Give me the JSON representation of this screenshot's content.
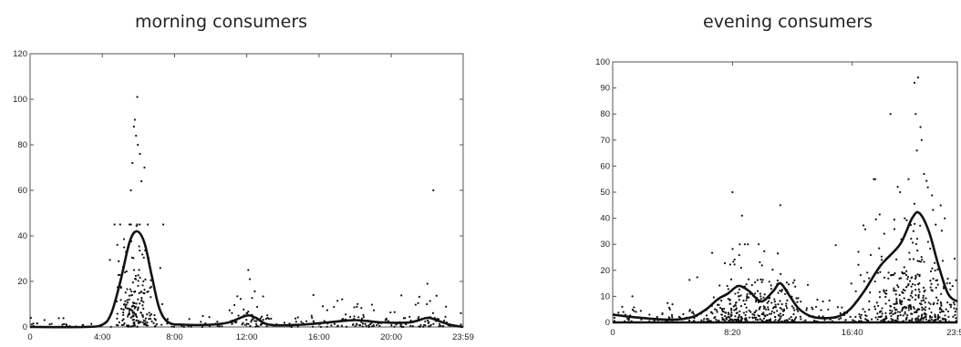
{
  "chart_data": [
    {
      "type": "scatter",
      "title": "morning consumers",
      "xlabel": "",
      "ylabel": "",
      "xlim": [
        "0:00",
        "23:59"
      ],
      "ylim": [
        0,
        120
      ],
      "x_ticks": [
        "0",
        "4:00",
        "8:00",
        "12:00",
        "16:00",
        "20:00",
        "23:59"
      ],
      "y_ticks": [
        "0",
        "20",
        "40",
        "60",
        "80",
        "100",
        "120"
      ],
      "grid": false,
      "series": [
        {
          "kind": "smoothed_line",
          "points": [
            [
              "0:00",
              0
            ],
            [
              "3:00",
              0
            ],
            [
              "4:00",
              1
            ],
            [
              "4:30",
              6
            ],
            [
              "5:00",
              20
            ],
            [
              "5:30",
              37
            ],
            [
              "5:54",
              42
            ],
            [
              "6:20",
              37
            ],
            [
              "6:45",
              22
            ],
            [
              "7:10",
              8
            ],
            [
              "7:40",
              2
            ],
            [
              "8:30",
              1
            ],
            [
              "10:00",
              1
            ],
            [
              "11:00",
              2
            ],
            [
              "12:00",
              5
            ],
            [
              "12:30",
              4
            ],
            [
              "13:15",
              1
            ],
            [
              "15:00",
              1
            ],
            [
              "16:30",
              2
            ],
            [
              "18:00",
              3
            ],
            [
              "19:30",
              2
            ],
            [
              "21:00",
              2
            ],
            [
              "22:00",
              4
            ],
            [
              "22:30",
              3
            ],
            [
              "23:15",
              1
            ],
            [
              "23:59",
              0
            ]
          ]
        },
        {
          "kind": "scatter_points",
          "clusters": [
            {
              "center": "5:50",
              "spread_min": 35,
              "n": 180,
              "y_max": 45,
              "y_scale": 14
            },
            {
              "center": "12:00",
              "spread_min": 45,
              "n": 45,
              "y_max": 16,
              "y_scale": 4
            },
            {
              "center": "18:00",
              "spread_min": 90,
              "n": 60,
              "y_max": 14,
              "y_scale": 4
            },
            {
              "center": "22:20",
              "spread_min": 55,
              "n": 40,
              "y_max": 16,
              "y_scale": 4
            }
          ],
          "background": {
            "n": 140,
            "y_max": 10,
            "y_scale": 1.5
          },
          "outliers": [
            [
              "5:56",
              101
            ],
            [
              "5:48",
              91
            ],
            [
              "5:45",
              88
            ],
            [
              "5:52",
              84
            ],
            [
              "5:58",
              80
            ],
            [
              "6:05",
              76
            ],
            [
              "5:40",
              72
            ],
            [
              "6:20",
              70
            ],
            [
              "5:35",
              60
            ],
            [
              "6:10",
              64
            ],
            [
              "12:05",
              25
            ],
            [
              "12:10",
              21
            ],
            [
              "22:20",
              60
            ],
            [
              "22:00",
              19
            ]
          ]
        }
      ]
    },
    {
      "type": "scatter",
      "title": "evening consumers",
      "xlabel": "",
      "ylabel": "",
      "xlim": [
        "0:00",
        "23:59"
      ],
      "ylim": [
        0,
        100
      ],
      "x_ticks": [
        "0",
        "8:20",
        "16:40",
        "23:59"
      ],
      "y_ticks": [
        "0",
        "10",
        "20",
        "30",
        "40",
        "50",
        "60",
        "70",
        "80",
        "90",
        "100"
      ],
      "grid": false,
      "series": [
        {
          "kind": "smoothed_line",
          "points": [
            [
              "0:00",
              3
            ],
            [
              "1:30",
              2
            ],
            [
              "4:00",
              1
            ],
            [
              "5:30",
              2
            ],
            [
              "6:30",
              5
            ],
            [
              "7:20",
              9
            ],
            [
              "8:00",
              11
            ],
            [
              "8:45",
              14
            ],
            [
              "9:30",
              12
            ],
            [
              "10:20",
              8
            ],
            [
              "11:10",
              12
            ],
            [
              "11:40",
              15
            ],
            [
              "12:20",
              10
            ],
            [
              "13:00",
              5
            ],
            [
              "14:00",
              2
            ],
            [
              "15:30",
              2
            ],
            [
              "16:30",
              5
            ],
            [
              "17:30",
              12
            ],
            [
              "18:40",
              22
            ],
            [
              "20:00",
              30
            ],
            [
              "20:50",
              40
            ],
            [
              "21:20",
              42
            ],
            [
              "22:00",
              35
            ],
            [
              "22:40",
              22
            ],
            [
              "23:20",
              11
            ],
            [
              "23:59",
              8
            ]
          ]
        },
        {
          "kind": "scatter_points",
          "clusters": [
            {
              "center": "8:40",
              "spread_min": 70,
              "n": 160,
              "y_max": 30,
              "y_scale": 8
            },
            {
              "center": "11:30",
              "spread_min": 50,
              "n": 100,
              "y_max": 28,
              "y_scale": 7
            },
            {
              "center": "20:45",
              "spread_min": 110,
              "n": 340,
              "y_max": 55,
              "y_scale": 12
            }
          ],
          "background": {
            "n": 260,
            "y_max": 10,
            "y_scale": 2.5
          },
          "outliers": [
            [
              "8:20",
              50
            ],
            [
              "9:00",
              41
            ],
            [
              "11:40",
              45
            ],
            [
              "19:20",
              80
            ],
            [
              "21:00",
              92
            ],
            [
              "21:15",
              94
            ],
            [
              "21:05",
              80
            ],
            [
              "21:25",
              75
            ],
            [
              "21:30",
              70
            ],
            [
              "21:10",
              66
            ],
            [
              "20:35",
              55
            ],
            [
              "21:40",
              57
            ],
            [
              "19:50",
              52
            ],
            [
              "20:00",
              50
            ]
          ]
        }
      ]
    }
  ]
}
